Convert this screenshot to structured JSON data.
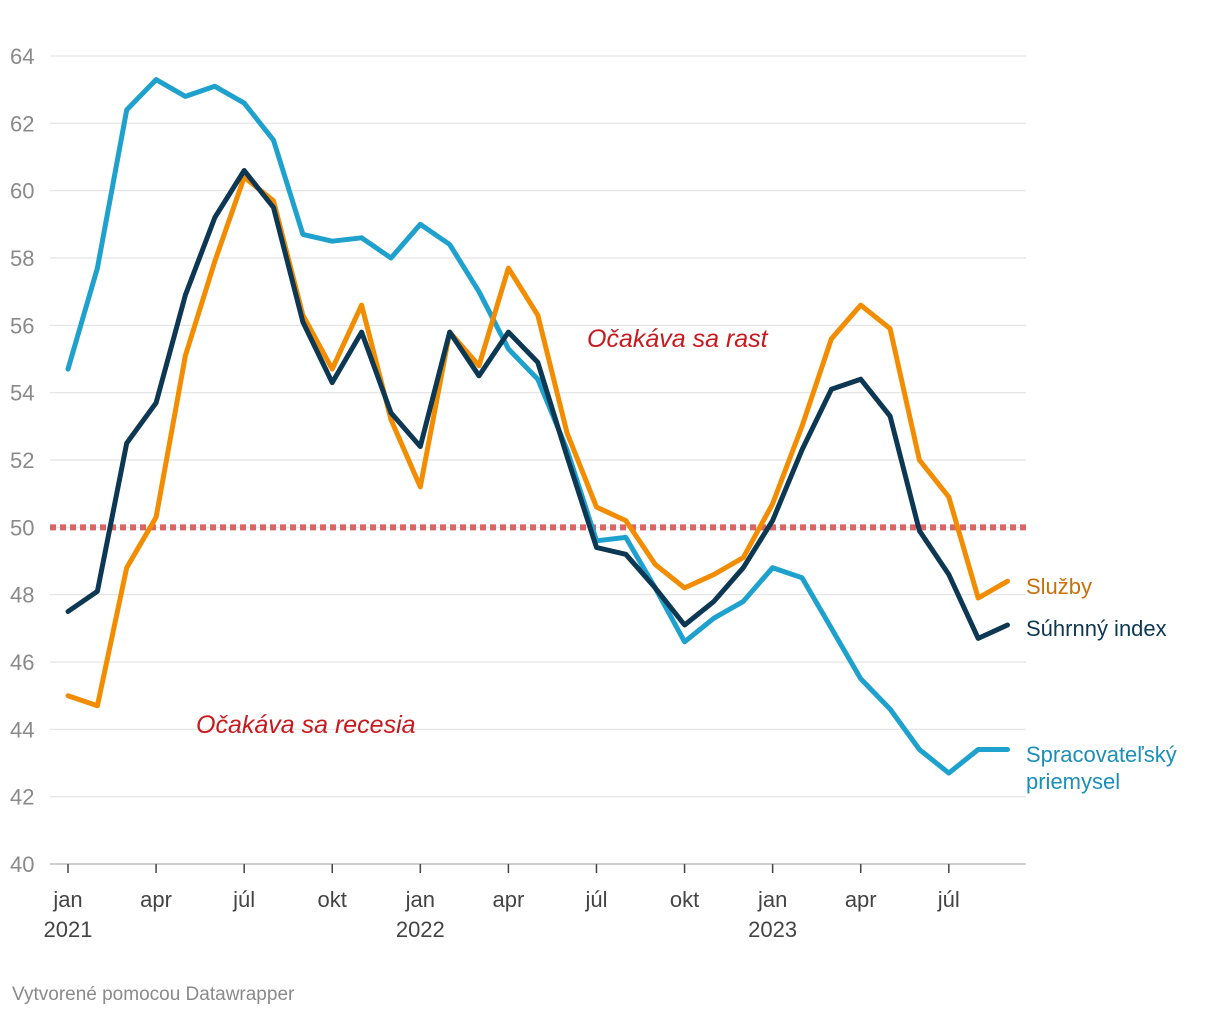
{
  "chart_data": {
    "type": "line",
    "title": "",
    "xlabel": "",
    "ylabel": "",
    "ylim": [
      40,
      64
    ],
    "yticks": [
      "40",
      "42",
      "44",
      "46",
      "48",
      "50",
      "52",
      "54",
      "56",
      "58",
      "60",
      "62",
      "64"
    ],
    "x_ticks": [
      {
        "month_index": 0,
        "month": "jan",
        "year": "2021"
      },
      {
        "month_index": 3,
        "month": "apr",
        "year": ""
      },
      {
        "month_index": 6,
        "month": "júl",
        "year": ""
      },
      {
        "month_index": 9,
        "month": "okt",
        "year": ""
      },
      {
        "month_index": 12,
        "month": "jan",
        "year": "2022"
      },
      {
        "month_index": 15,
        "month": "apr",
        "year": ""
      },
      {
        "month_index": 18,
        "month": "júl",
        "year": ""
      },
      {
        "month_index": 21,
        "month": "okt",
        "year": ""
      },
      {
        "month_index": 24,
        "month": "jan",
        "year": "2023"
      },
      {
        "month_index": 27,
        "month": "apr",
        "year": ""
      },
      {
        "month_index": 30,
        "month": "júl",
        "year": ""
      }
    ],
    "x_start": "2021-01",
    "reference_line": {
      "value": 50,
      "color": "#d96565",
      "style": "dotted"
    },
    "annotations": {
      "growth": "Očakáva sa rast",
      "recession": "Očakáva sa recesia"
    },
    "series": [
      {
        "name": "Služby",
        "color": "#f28c00",
        "label_color": "#c8700a",
        "values": [
          45.0,
          44.7,
          48.8,
          50.3,
          55.1,
          57.9,
          60.4,
          59.7,
          56.3,
          54.7,
          56.6,
          53.2,
          51.2,
          55.8,
          54.8,
          57.7,
          56.3,
          52.8,
          50.6,
          50.2,
          48.9,
          48.2,
          48.6,
          49.1,
          50.7,
          53.0,
          55.6,
          56.6,
          55.9,
          52.0,
          50.9,
          47.9,
          48.4
        ]
      },
      {
        "name": "Súhrnný index",
        "color": "#0d3853",
        "label_color": "#0d3853",
        "values": [
          47.5,
          48.1,
          52.5,
          53.7,
          56.9,
          59.2,
          60.6,
          59.5,
          56.1,
          54.3,
          55.8,
          53.4,
          52.4,
          55.8,
          54.5,
          55.8,
          54.9,
          52.1,
          49.4,
          49.2,
          48.2,
          47.1,
          47.8,
          48.8,
          50.2,
          52.3,
          54.1,
          54.4,
          53.3,
          49.9,
          48.6,
          46.7,
          47.1
        ]
      },
      {
        "name": "Spracovateľský priemysel",
        "label_lines": [
          "Spracovateľský",
          "priemysel"
        ],
        "color": "#1fa1cd",
        "label_color": "#1b8fb8",
        "values": [
          54.7,
          57.7,
          62.4,
          63.3,
          62.8,
          63.1,
          62.6,
          61.5,
          58.7,
          58.5,
          58.6,
          58.0,
          59.0,
          58.4,
          57.0,
          55.3,
          54.4,
          52.3,
          49.6,
          49.7,
          48.2,
          46.6,
          47.3,
          47.8,
          48.8,
          48.5,
          47.0,
          45.5,
          44.6,
          43.4,
          42.7,
          43.4,
          43.4
        ]
      }
    ]
  },
  "footer": {
    "credit": "Vytvorené pomocou Datawrapper"
  }
}
